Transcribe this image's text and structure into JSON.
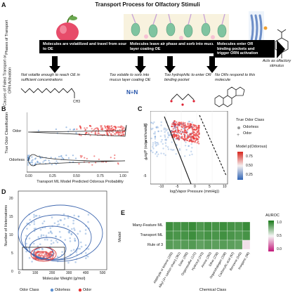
{
  "panel_a": {
    "letter": "A",
    "title": "Transport Process for Olfactory Stimuli",
    "row_label_1": "Phases of Transport",
    "row_label_2": "Causes of Failed Transport or ORN Activation",
    "phases": [
      "Molecules are volatilized and travel from source to OE",
      "Molecules leave air phase and sorb into mucus layer coating OE",
      "Molecules enter OR binding pockets and trigger ORN activation"
    ],
    "outcome": "Acts as olfactory stimulus",
    "failures": [
      "Not volatile enough to reach OE in sufficient concentrations",
      "Too volatile to sorb into mucus layer coating OE",
      "Too hydrophilic to enter OR binding pocket",
      "No ORs respond to this molecule"
    ],
    "ch3_label": "CH3",
    "nitrile_label": "N≡N",
    "nitrile_colors": [
      "#1f4fa8",
      "#1aa6d9"
    ]
  },
  "panel_b": {
    "letter": "B",
    "ylabel": "True Odor Classification",
    "xlabel": "Transport ML Model Predicted Odorous Probability",
    "categories": [
      "Odor",
      "Odorless"
    ],
    "xticks": [
      "0.00",
      "0.25",
      "0.50",
      "0.75",
      "1.00"
    ]
  },
  "panel_c": {
    "letter": "C",
    "xlabel": "log(Vapor Pressure (mmHg))",
    "ylabel": "LogP (octanol/water)",
    "xticks": [
      "-10",
      "-5",
      "0",
      "5",
      "10"
    ],
    "yticks": [
      "-5",
      "0",
      "5",
      "10"
    ],
    "legend_title": "True Odor Class",
    "legend_items": [
      "Odorless",
      "Odor"
    ],
    "colorbar_title": "Model p(Odorous)",
    "colorbar_ticks": [
      "0.75",
      "0.50",
      "0.25"
    ]
  },
  "panel_d": {
    "letter": "D",
    "xlabel": "Molecular Weight (g/mol)",
    "ylabel": "Number of Heteroatoms",
    "xticks": [
      "0",
      "100",
      "200",
      "300",
      "400",
      "500"
    ],
    "yticks": [
      "0",
      "5",
      "10",
      "15",
      "20"
    ],
    "legend_title": "Odor Class",
    "legend_items": [
      "Odorless",
      "Odor"
    ]
  },
  "panel_e": {
    "letter": "E",
    "ylabel": "Model",
    "xlabel": "Chemical Class",
    "rows": [
      "Many-Feature ML",
      "Transport ML",
      "Rule of 3"
    ],
    "columns": [
      "Aldehyde or ketone (185)",
      "Alkyl (4+ carbon chain) (361)",
      "Ester (288)",
      "Organosulfur (121)",
      "Hydroxyl (243)",
      "Amine (260)",
      "Ether (238)",
      "Organohalogen (338)",
      "Carboxylic acid (62)",
      "Benzene (545)",
      "Inorganic (96)"
    ],
    "colorbar_title": "AUROC",
    "colorbar_ticks": [
      "1.0",
      "0.5",
      "0.0"
    ],
    "values": [
      [
        0.92,
        0.9,
        0.91,
        0.93,
        0.88,
        0.91,
        0.9,
        0.92,
        0.9,
        0.89,
        0.93
      ],
      [
        0.9,
        0.89,
        0.9,
        0.92,
        0.88,
        0.9,
        0.89,
        0.91,
        0.89,
        0.88,
        0.9
      ],
      [
        0.86,
        0.85,
        0.86,
        0.87,
        0.84,
        0.86,
        0.85,
        0.86,
        0.85,
        0.84,
        0.45
      ]
    ]
  },
  "colors": {
    "odor": "#e83232",
    "odorless": "#5b8fd0",
    "heat_high": "#1a7a1a",
    "heat_low": "#c2187a",
    "contour": "#4169b0"
  }
}
